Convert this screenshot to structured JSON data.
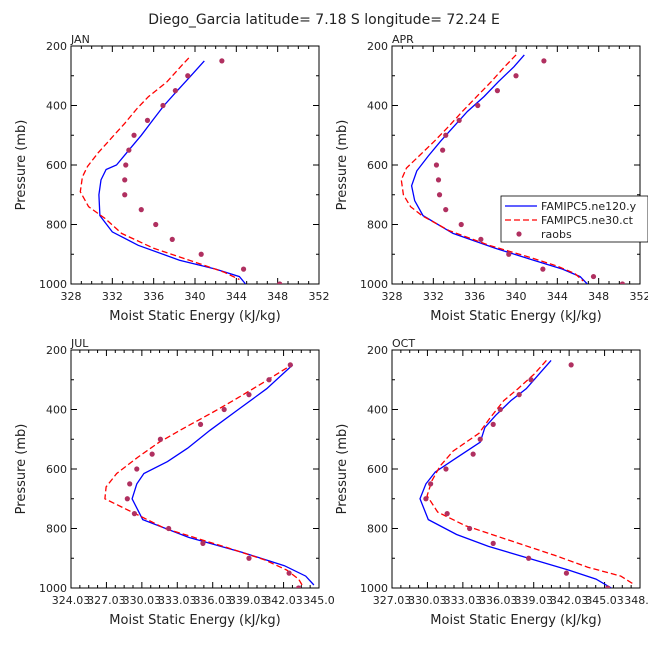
{
  "figure_title": "Diego_Garcia   latitude= 7.18 S longitude= 72.24 E",
  "colors": {
    "model1": "#0000ff",
    "model2": "#ff0000",
    "obs": "#b03060",
    "axis": "#000000"
  },
  "chart_data": [
    {
      "type": "line",
      "panel": "JAN",
      "xlabel": "Moist Static Energy (kJ/kg)",
      "ylabel": "Pressure (mb)",
      "xlim": [
        328,
        352
      ],
      "ylim": [
        1000,
        200
      ],
      "xticks": [
        "328",
        "332",
        "336",
        "340",
        "344",
        "348",
        "352"
      ],
      "xtick_values": [
        328,
        332,
        336,
        340,
        344,
        348,
        352
      ],
      "yticks": [
        "200",
        "400",
        "600",
        "800",
        "1000"
      ],
      "ytick_values": [
        200,
        400,
        600,
        800,
        1000
      ],
      "legend": null,
      "series": [
        {
          "name": "FAMIPC5.ne120.y",
          "style": "solid",
          "points": [
            [
              340.9,
              250
            ],
            [
              339.6,
              300
            ],
            [
              338.3,
              350
            ],
            [
              337.0,
              400
            ],
            [
              335.9,
              450
            ],
            [
              334.8,
              500
            ],
            [
              333.6,
              550
            ],
            [
              332.4,
              600
            ],
            [
              331.4,
              615
            ],
            [
              330.9,
              650
            ],
            [
              330.7,
              700
            ],
            [
              330.8,
              770
            ],
            [
              332.0,
              825
            ],
            [
              334.5,
              870
            ],
            [
              338.5,
              920
            ],
            [
              342.0,
              950
            ],
            [
              344.3,
              975
            ],
            [
              344.9,
              1000
            ]
          ]
        },
        {
          "name": "FAMIPC5.ne30.ct",
          "style": "dashed",
          "points": [
            [
              339.4,
              240
            ],
            [
              338.6,
              270
            ],
            [
              337.3,
              320
            ],
            [
              335.5,
              370
            ],
            [
              334.4,
              410
            ],
            [
              333.2,
              460
            ],
            [
              331.9,
              510
            ],
            [
              330.6,
              560
            ],
            [
              329.6,
              605
            ],
            [
              329.1,
              640
            ],
            [
              328.9,
              690
            ],
            [
              329.7,
              740
            ],
            [
              331.3,
              780
            ],
            [
              332.9,
              830
            ],
            [
              336.0,
              880
            ],
            [
              340.3,
              930
            ],
            [
              342.8,
              960
            ],
            [
              344.3,
              985
            ]
          ]
        },
        {
          "name": "raobs",
          "style": "points",
          "points": [
            [
              342.6,
              250
            ],
            [
              339.3,
              300
            ],
            [
              338.1,
              350
            ],
            [
              336.9,
              400
            ],
            [
              335.4,
              450
            ],
            [
              334.1,
              500
            ],
            [
              333.6,
              550
            ],
            [
              333.3,
              600
            ],
            [
              333.2,
              650
            ],
            [
              333.2,
              700
            ],
            [
              334.8,
              750
            ],
            [
              336.2,
              800
            ],
            [
              337.8,
              850
            ],
            [
              340.6,
              900
            ],
            [
              344.7,
              950
            ],
            [
              348.2,
              1000
            ]
          ]
        }
      ]
    },
    {
      "type": "line",
      "panel": "APR",
      "xlabel": "Moist Static Energy (kJ/kg)",
      "ylabel": "Pressure (mb)",
      "xlim": [
        328,
        352
      ],
      "ylim": [
        1000,
        200
      ],
      "xticks": [
        "328",
        "332",
        "336",
        "340",
        "344",
        "348",
        "352"
      ],
      "xtick_values": [
        328,
        332,
        336,
        340,
        344,
        348,
        352
      ],
      "yticks": [
        "200",
        "400",
        "600",
        "800",
        "1000"
      ],
      "ytick_values": [
        200,
        400,
        600,
        800,
        1000
      ],
      "legend": {
        "entries": [
          "FAMIPC5.ne120.y",
          "FAMIPC5.ne30.ct",
          "raobs"
        ]
      },
      "series": [
        {
          "name": "FAMIPC5.ne120.y",
          "style": "solid",
          "points": [
            [
              340.8,
              230
            ],
            [
              339.8,
              270
            ],
            [
              338.3,
              320
            ],
            [
              336.9,
              370
            ],
            [
              335.3,
              420
            ],
            [
              334.0,
              470
            ],
            [
              332.7,
              520
            ],
            [
              331.5,
              570
            ],
            [
              330.4,
              620
            ],
            [
              329.9,
              670
            ],
            [
              330.2,
              720
            ],
            [
              331.0,
              770
            ],
            [
              333.9,
              830
            ],
            [
              338.0,
              880
            ],
            [
              341.7,
              920
            ],
            [
              344.5,
              950
            ],
            [
              346.2,
              975
            ],
            [
              346.9,
              1000
            ]
          ]
        },
        {
          "name": "FAMIPC5.ne30.ct",
          "style": "dashed",
          "points": [
            [
              340.0,
              230
            ],
            [
              338.9,
              270
            ],
            [
              337.6,
              320
            ],
            [
              336.2,
              370
            ],
            [
              334.8,
              420
            ],
            [
              333.5,
              470
            ],
            [
              332.1,
              520
            ],
            [
              330.6,
              570
            ],
            [
              329.4,
              610
            ],
            [
              328.9,
              650
            ],
            [
              329.1,
              700
            ],
            [
              329.8,
              740
            ],
            [
              330.9,
              770
            ],
            [
              333.5,
              820
            ],
            [
              337.4,
              870
            ],
            [
              341.3,
              910
            ],
            [
              344.0,
              940
            ],
            [
              345.7,
              965
            ],
            [
              346.5,
              990
            ]
          ]
        },
        {
          "name": "raobs",
          "style": "points",
          "points": [
            [
              342.7,
              250
            ],
            [
              340.0,
              300
            ],
            [
              338.2,
              350
            ],
            [
              336.3,
              400
            ],
            [
              334.5,
              450
            ],
            [
              333.2,
              500
            ],
            [
              332.9,
              550
            ],
            [
              332.3,
              600
            ],
            [
              332.5,
              650
            ],
            [
              332.6,
              700
            ],
            [
              333.2,
              750
            ],
            [
              334.7,
              800
            ],
            [
              336.6,
              850
            ],
            [
              339.3,
              900
            ],
            [
              342.6,
              950
            ],
            [
              347.5,
              975
            ],
            [
              350.3,
              1000
            ]
          ]
        }
      ]
    },
    {
      "type": "line",
      "panel": "JUL",
      "xlabel": "Moist Static Energy (kJ/kg)",
      "ylabel": "Pressure (mb)",
      "xlim": [
        324.03,
        345.03
      ],
      "ylim": [
        1000,
        200
      ],
      "xticks": [
        "324.03",
        "327.03",
        "330.03",
        "333.03",
        "336.03",
        "339.03",
        "342.03",
        "345.0"
      ],
      "xtick_values": [
        324.03,
        327.03,
        330.03,
        333.03,
        336.03,
        339.03,
        342.03,
        345.03
      ],
      "yticks": [
        "200",
        "400",
        "600",
        "800",
        "1000"
      ],
      "ytick_values": [
        200,
        400,
        600,
        800,
        1000
      ],
      "legend": null,
      "series": [
        {
          "name": "FAMIPC5.ne120.y",
          "style": "solid",
          "points": [
            [
              342.8,
              250
            ],
            [
              340.6,
              330
            ],
            [
              338.2,
              400
            ],
            [
              335.8,
              470
            ],
            [
              333.9,
              530
            ],
            [
              332.2,
              575
            ],
            [
              330.2,
              615
            ],
            [
              329.6,
              650
            ],
            [
              329.2,
              700
            ],
            [
              330.1,
              770
            ],
            [
              334.0,
              830
            ],
            [
              338.5,
              880
            ],
            [
              342.1,
              925
            ],
            [
              343.9,
              960
            ],
            [
              344.6,
              990
            ]
          ]
        },
        {
          "name": "FAMIPC5.ne30.ct",
          "style": "dashed",
          "points": [
            [
              342.3,
              260
            ],
            [
              340.3,
              310
            ],
            [
              338.2,
              360
            ],
            [
              336.0,
              410
            ],
            [
              333.7,
              460
            ],
            [
              331.5,
              510
            ],
            [
              329.7,
              560
            ],
            [
              327.9,
              615
            ],
            [
              327.0,
              660
            ],
            [
              326.9,
              700
            ],
            [
              329.2,
              745
            ],
            [
              332.0,
              800
            ],
            [
              337.3,
              865
            ],
            [
              340.4,
              905
            ],
            [
              342.3,
              940
            ],
            [
              343.3,
              970
            ],
            [
              343.6,
              990
            ]
          ]
        },
        {
          "name": "raobs",
          "style": "points",
          "points": [
            [
              342.6,
              250
            ],
            [
              340.8,
              300
            ],
            [
              339.1,
              350
            ],
            [
              337.0,
              400
            ],
            [
              335.0,
              450
            ],
            [
              331.6,
              500
            ],
            [
              330.9,
              550
            ],
            [
              329.6,
              600
            ],
            [
              329.0,
              650
            ],
            [
              328.8,
              700
            ],
            [
              329.4,
              750
            ],
            [
              332.3,
              800
            ],
            [
              335.2,
              850
            ],
            [
              339.1,
              900
            ],
            [
              342.5,
              950
            ],
            [
              343.3,
              1000
            ]
          ]
        }
      ]
    },
    {
      "type": "line",
      "panel": "OCT",
      "xlabel": "Moist Static Energy (kJ/kg)",
      "ylabel": "Pressure (mb)",
      "xlim": [
        327.03,
        348.03
      ],
      "ylim": [
        1000,
        200
      ],
      "xticks": [
        "327.03",
        "330.03",
        "333.03",
        "336.03",
        "339.03",
        "342.03",
        "345.03",
        "348.0"
      ],
      "xtick_values": [
        327.03,
        330.03,
        333.03,
        336.03,
        339.03,
        342.03,
        345.03,
        348.03
      ],
      "yticks": [
        "200",
        "400",
        "600",
        "800",
        "1000"
      ],
      "ytick_values": [
        200,
        400,
        600,
        800,
        1000
      ],
      "legend": null,
      "series": [
        {
          "name": "FAMIPC5.ne120.y",
          "style": "solid",
          "points": [
            [
              340.5,
              235
            ],
            [
              339.5,
              280
            ],
            [
              338.4,
              330
            ],
            [
              337.1,
              370
            ],
            [
              335.8,
              420
            ],
            [
              334.9,
              460
            ],
            [
              334.5,
              510
            ],
            [
              332.2,
              570
            ],
            [
              330.7,
              610
            ],
            [
              329.9,
              650
            ],
            [
              329.4,
              700
            ],
            [
              330.1,
              770
            ],
            [
              332.5,
              820
            ],
            [
              335.2,
              860
            ],
            [
              338.6,
              900
            ],
            [
              342.0,
              940
            ],
            [
              344.3,
              970
            ],
            [
              345.6,
              1000
            ]
          ]
        },
        {
          "name": "FAMIPC5.ne30.ct",
          "style": "dashed",
          "points": [
            [
              340.1,
              235
            ],
            [
              339.1,
              280
            ],
            [
              337.7,
              330
            ],
            [
              336.5,
              370
            ],
            [
              335.3,
              430
            ],
            [
              334.4,
              480
            ],
            [
              332.2,
              540
            ],
            [
              331.1,
              590
            ],
            [
              330.4,
              640
            ],
            [
              330.0,
              690
            ],
            [
              330.9,
              745
            ],
            [
              333.2,
              790
            ],
            [
              337.0,
              840
            ],
            [
              340.8,
              890
            ],
            [
              343.6,
              930
            ],
            [
              346.4,
              960
            ],
            [
              347.6,
              990
            ]
          ]
        },
        {
          "name": "raobs",
          "style": "points",
          "points": [
            [
              342.2,
              250
            ],
            [
              338.8,
              300
            ],
            [
              337.8,
              350
            ],
            [
              336.2,
              400
            ],
            [
              335.6,
              450
            ],
            [
              334.5,
              500
            ],
            [
              333.9,
              550
            ],
            [
              331.6,
              600
            ],
            [
              330.3,
              650
            ],
            [
              329.9,
              700
            ],
            [
              331.7,
              750
            ],
            [
              333.6,
              800
            ],
            [
              335.6,
              850
            ],
            [
              338.6,
              900
            ],
            [
              341.8,
              950
            ],
            [
              345.3,
              1000
            ]
          ]
        }
      ]
    }
  ]
}
